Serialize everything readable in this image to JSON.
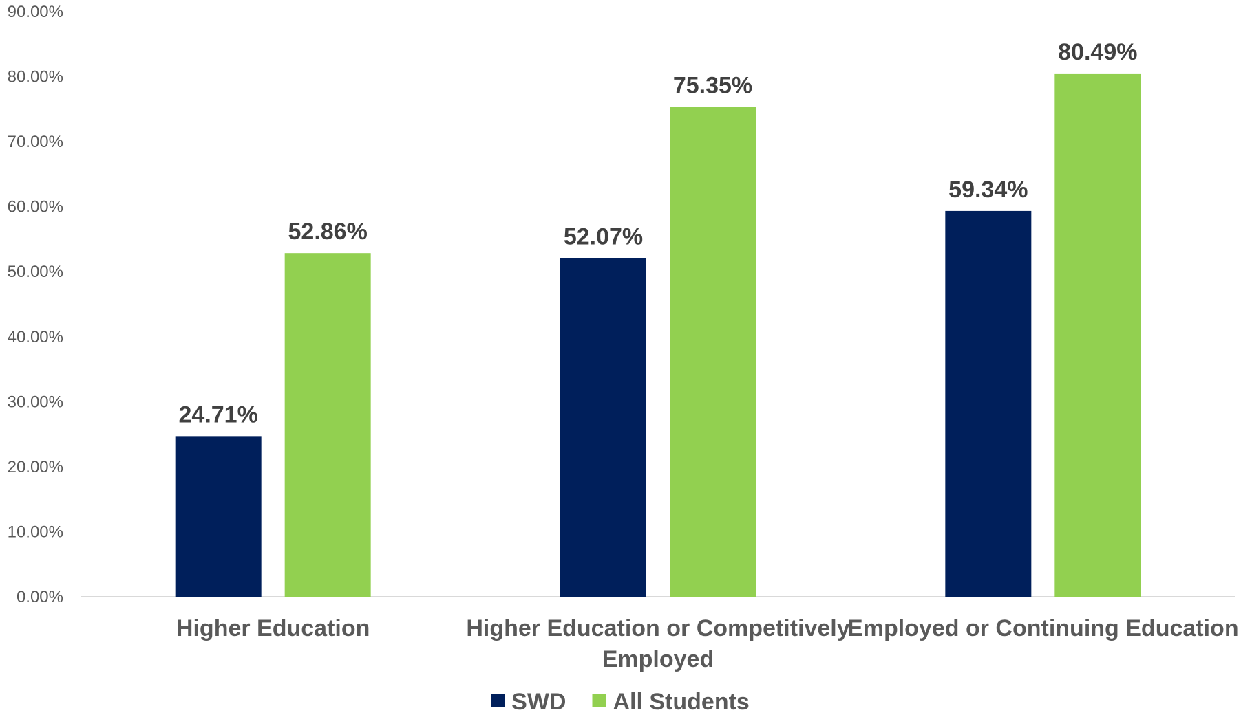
{
  "chart_data": {
    "type": "bar",
    "categories": [
      [
        "Higher Education"
      ],
      [
        "Higher Education or Competitively",
        "Employed"
      ],
      [
        "Employed or Continuing Education"
      ]
    ],
    "series": [
      {
        "name": "SWD",
        "color": "#001F5B",
        "values": [
          24.71,
          52.07,
          59.34
        ],
        "labels": [
          "24.71%",
          "52.07%",
          "59.34%"
        ]
      },
      {
        "name": "All Students",
        "color": "#92D050",
        "values": [
          52.86,
          75.35,
          80.49
        ],
        "labels": [
          "52.86%",
          "75.35%",
          "80.49%"
        ]
      }
    ],
    "ylim": [
      0,
      90
    ],
    "yticks": [
      "0.00%",
      "10.00%",
      "20.00%",
      "30.00%",
      "40.00%",
      "50.00%",
      "60.00%",
      "70.00%",
      "80.00%",
      "90.00%"
    ],
    "ytick_values": [
      0,
      10,
      20,
      30,
      40,
      50,
      60,
      70,
      80,
      90
    ],
    "grid": false,
    "legend_position": "bottom"
  }
}
